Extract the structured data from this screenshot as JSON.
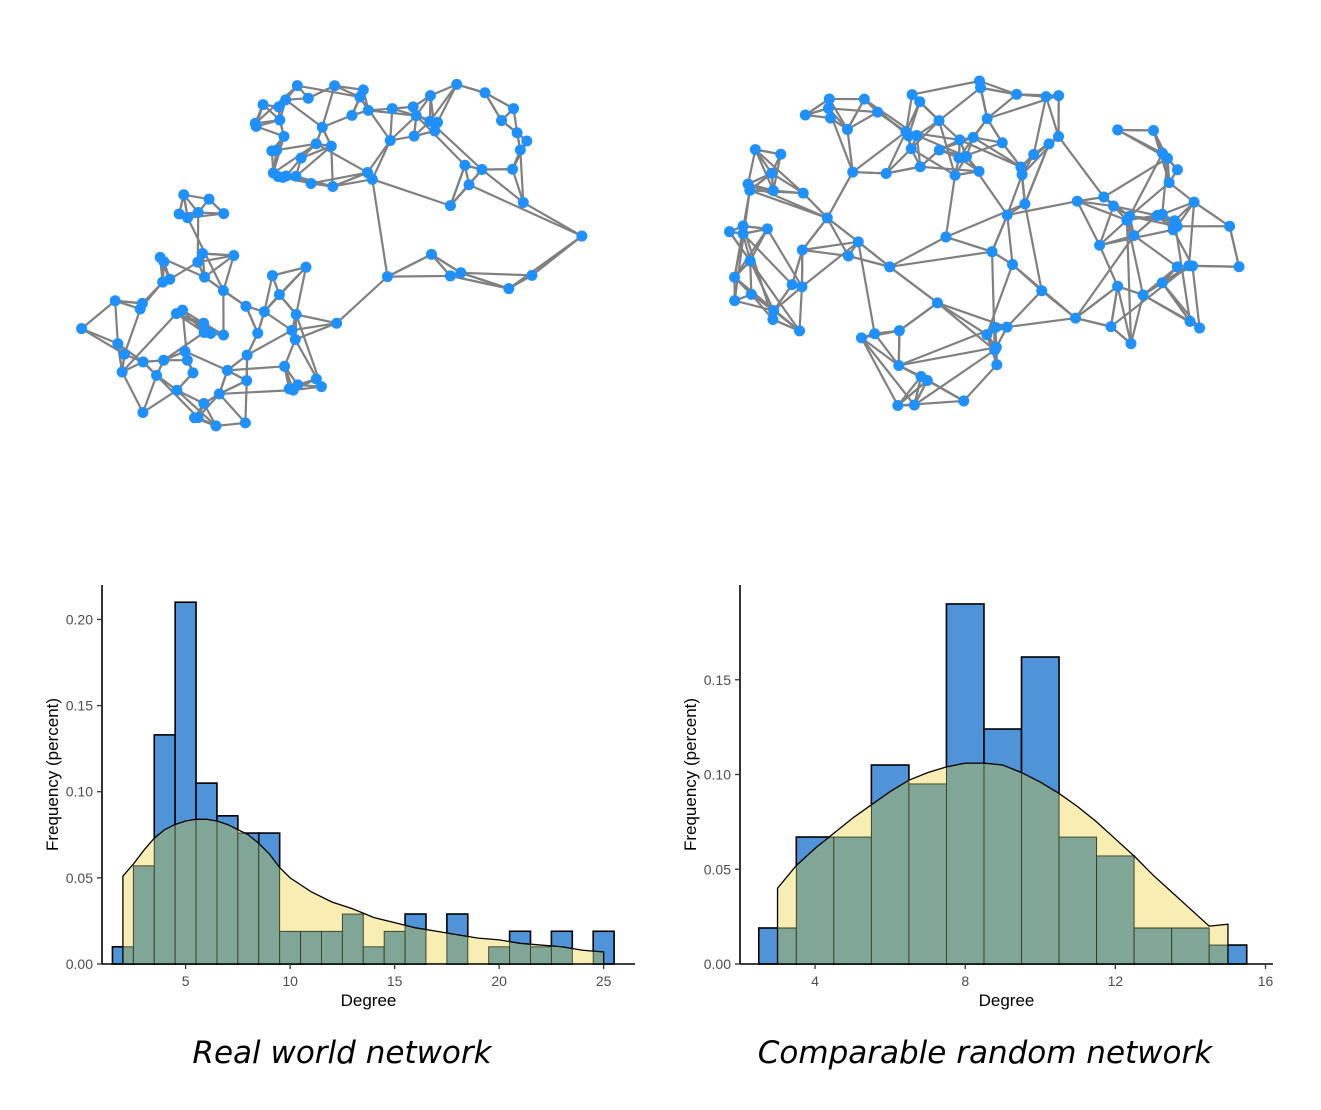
{
  "colors": {
    "node": "#1e90ff",
    "edge": "#808080",
    "observed_bar": "#4f94d8",
    "expected_fill": "#f8eeb4",
    "overlap_fill": "#7fa697",
    "axis": "#000000"
  },
  "captions": {
    "left": "Real world network",
    "right": "Comparable random network"
  },
  "chart_data": [
    {
      "type": "bar",
      "panel": "left",
      "xlabel": "Degree",
      "ylabel": "Frequency (percent)",
      "xlim": [
        1,
        26.5
      ],
      "ylim": [
        0,
        0.22
      ],
      "xticks": [
        5,
        10,
        15,
        20,
        25
      ],
      "xtick_labels": [
        "5",
        "10",
        "15",
        "20",
        "25"
      ],
      "yticks": [
        0,
        0.05,
        0.1,
        0.15,
        0.2
      ],
      "ytick_labels": [
        "0.00",
        "0.05",
        "0.10",
        "0.15",
        "0.20"
      ],
      "bin_width": 1,
      "series": [
        {
          "name": "observed",
          "bins": [
            {
              "x": 2,
              "value": 0.01
            },
            {
              "x": 3,
              "value": 0.057
            },
            {
              "x": 4,
              "value": 0.133
            },
            {
              "x": 5,
              "value": 0.21
            },
            {
              "x": 6,
              "value": 0.105
            },
            {
              "x": 7,
              "value": 0.086
            },
            {
              "x": 8,
              "value": 0.076
            },
            {
              "x": 9,
              "value": 0.076
            },
            {
              "x": 10,
              "value": 0.019
            },
            {
              "x": 11,
              "value": 0.019
            },
            {
              "x": 12,
              "value": 0.019
            },
            {
              "x": 13,
              "value": 0.029
            },
            {
              "x": 14,
              "value": 0.01
            },
            {
              "x": 15,
              "value": 0.019
            },
            {
              "x": 16,
              "value": 0.029
            },
            {
              "x": 17,
              "value": 0.0
            },
            {
              "x": 18,
              "value": 0.029
            },
            {
              "x": 19,
              "value": 0.0
            },
            {
              "x": 20,
              "value": 0.01
            },
            {
              "x": 21,
              "value": 0.019
            },
            {
              "x": 22,
              "value": 0.01
            },
            {
              "x": 23,
              "value": 0.019
            },
            {
              "x": 24,
              "value": 0.0
            },
            {
              "x": 25,
              "value": 0.019
            }
          ]
        },
        {
          "name": "expected",
          "curve": [
            [
              2,
              0.051
            ],
            [
              2.5,
              0.058
            ],
            [
              3,
              0.066
            ],
            [
              3.5,
              0.073
            ],
            [
              4,
              0.078
            ],
            [
              4.5,
              0.081
            ],
            [
              5,
              0.083
            ],
            [
              5.5,
              0.084
            ],
            [
              6,
              0.084
            ],
            [
              6.5,
              0.083
            ],
            [
              7,
              0.081
            ],
            [
              7.5,
              0.078
            ],
            [
              8,
              0.075
            ],
            [
              8.5,
              0.07
            ],
            [
              9,
              0.064
            ],
            [
              9.5,
              0.056
            ],
            [
              10,
              0.05
            ],
            [
              11,
              0.042
            ],
            [
              12,
              0.036
            ],
            [
              13,
              0.032
            ],
            [
              14,
              0.027
            ],
            [
              15,
              0.024
            ],
            [
              16,
              0.021
            ],
            [
              17,
              0.019
            ],
            [
              18,
              0.017
            ],
            [
              19,
              0.015
            ],
            [
              20,
              0.014
            ],
            [
              21,
              0.012
            ],
            [
              22,
              0.011
            ],
            [
              23,
              0.01
            ],
            [
              24,
              0.008
            ],
            [
              25,
              0.007
            ]
          ]
        }
      ]
    },
    {
      "type": "bar",
      "panel": "right",
      "xlabel": "Degree",
      "ylabel": "Frequency (percent)",
      "xlim": [
        2,
        16.2
      ],
      "ylim": [
        0,
        0.2
      ],
      "xticks": [
        4,
        8,
        12,
        16
      ],
      "xtick_labels": [
        "4",
        "8",
        "12",
        "16"
      ],
      "yticks": [
        0,
        0.05,
        0.1,
        0.15
      ],
      "ytick_labels": [
        "0.00",
        "0.05",
        "0.10",
        "0.15"
      ],
      "bin_width": 1,
      "series": [
        {
          "name": "observed",
          "bins": [
            {
              "x": 3,
              "value": 0.019
            },
            {
              "x": 4,
              "value": 0.067
            },
            {
              "x": 5,
              "value": 0.067
            },
            {
              "x": 6,
              "value": 0.105
            },
            {
              "x": 7,
              "value": 0.095
            },
            {
              "x": 8,
              "value": 0.19
            },
            {
              "x": 9,
              "value": 0.124
            },
            {
              "x": 10,
              "value": 0.162
            },
            {
              "x": 11,
              "value": 0.067
            },
            {
              "x": 12,
              "value": 0.057
            },
            {
              "x": 13,
              "value": 0.019
            },
            {
              "x": 14,
              "value": 0.019
            },
            {
              "x": 15,
              "value": 0.01
            }
          ]
        },
        {
          "name": "expected",
          "curve": [
            [
              3,
              0.04
            ],
            [
              3.5,
              0.052
            ],
            [
              4,
              0.061
            ],
            [
              4.5,
              0.069
            ],
            [
              5,
              0.077
            ],
            [
              5.5,
              0.084
            ],
            [
              6,
              0.091
            ],
            [
              6.5,
              0.097
            ],
            [
              7,
              0.101
            ],
            [
              7.5,
              0.104
            ],
            [
              8,
              0.106
            ],
            [
              8.5,
              0.106
            ],
            [
              9,
              0.105
            ],
            [
              9.5,
              0.101
            ],
            [
              10,
              0.096
            ],
            [
              10.5,
              0.09
            ],
            [
              11,
              0.083
            ],
            [
              11.5,
              0.075
            ],
            [
              12,
              0.066
            ],
            [
              12.5,
              0.057
            ],
            [
              13,
              0.047
            ],
            [
              13.5,
              0.038
            ],
            [
              14,
              0.029
            ],
            [
              14.5,
              0.02
            ],
            [
              15,
              0.021
            ]
          ]
        }
      ]
    }
  ]
}
